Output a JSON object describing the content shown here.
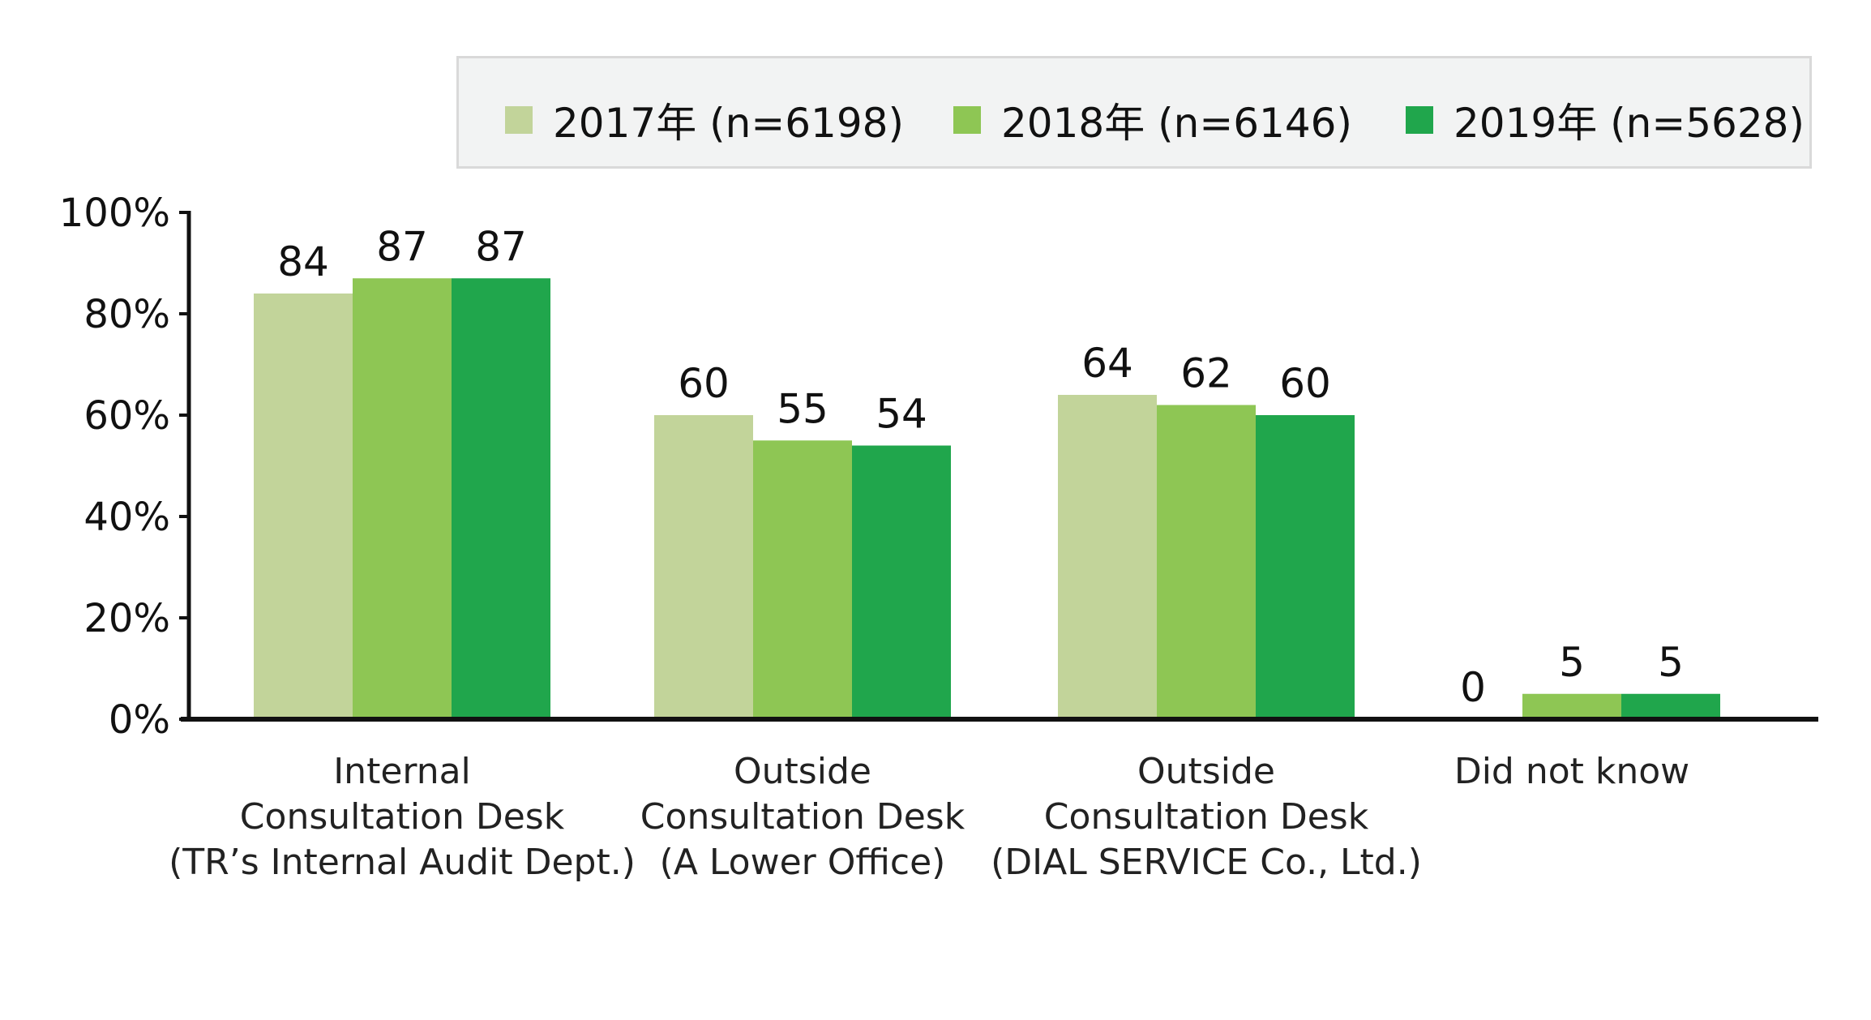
{
  "chart_data": {
    "type": "bar",
    "categories": [
      [
        "Internal",
        "Consultation Desk",
        "(TR’s Internal Audit Dept.)"
      ],
      [
        "Outside",
        "Consultation Desk",
        "(A Lower Office)"
      ],
      [
        "Outside",
        "Consultation Desk",
        "(DIAL SERVICE Co., Ltd.)"
      ],
      [
        "Did not know"
      ]
    ],
    "series": [
      {
        "name": "2017年 (n=6198)",
        "color": "#c2d49a",
        "values": [
          84,
          60,
          64,
          0
        ]
      },
      {
        "name": "2018年 (n=6146)",
        "color": "#8ec654",
        "values": [
          87,
          55,
          62,
          5
        ]
      },
      {
        "name": "2019年 (n=5628)",
        "color": "#20a64c",
        "values": [
          87,
          54,
          60,
          5
        ]
      }
    ],
    "ylim": [
      0,
      100
    ],
    "yticks": [
      "0%",
      "20%",
      "40%",
      "60%",
      "80%",
      "100%"
    ],
    "ytick_values": [
      0,
      20,
      40,
      60,
      80,
      100
    ],
    "legend_position": "top",
    "grid": false
  }
}
